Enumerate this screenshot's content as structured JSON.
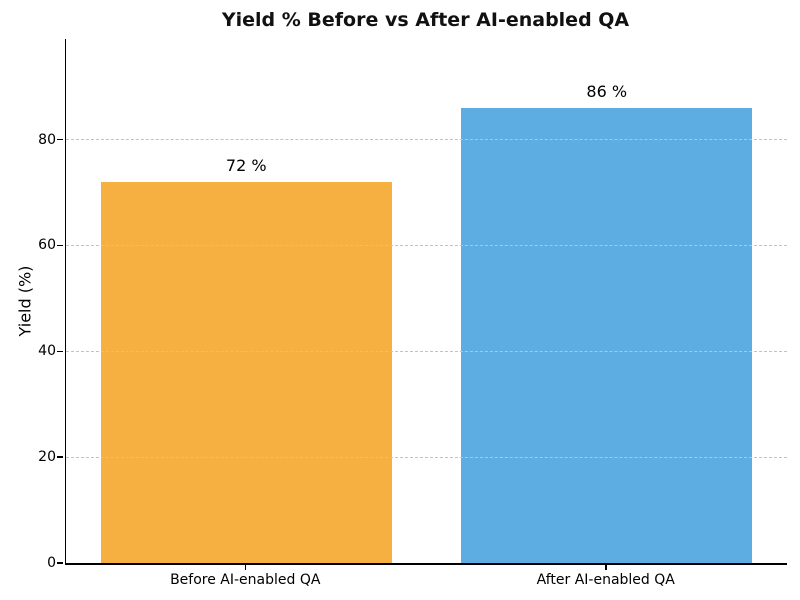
{
  "chart_data": {
    "type": "bar",
    "title": "Yield % Before vs After AI-enabled QA",
    "xlabel": "",
    "ylabel": "Yield (%)",
    "categories": [
      "Before AI-enabled QA",
      "After AI-enabled QA"
    ],
    "values": [
      72,
      86
    ],
    "value_labels": [
      "72 %",
      "86 %"
    ],
    "bar_colors": [
      "#f5b041",
      "#5dade2"
    ],
    "yticks": [
      0,
      20,
      40,
      60,
      80
    ],
    "ytick_labels": [
      "0",
      "20",
      "40",
      "60",
      "80"
    ],
    "ylim": [
      0,
      99
    ],
    "grid": {
      "horizontal": true,
      "vertical": false,
      "style": "dashed",
      "color": "#c2c2c2",
      "drawn_above_bars": true
    },
    "legend": "none",
    "background_color": "#ffffff",
    "text_color": "#000000",
    "title_color": "#111111"
  }
}
